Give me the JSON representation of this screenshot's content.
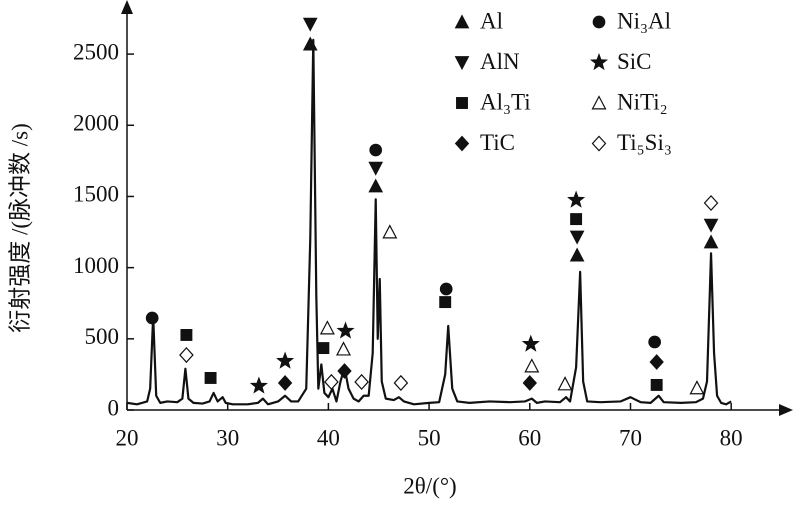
{
  "chart_data": {
    "type": "line",
    "xlabel": "2θ/(°)",
    "ylabel": "衍射强度 /(脉冲数 /s)",
    "color": "#111111",
    "xlim": [
      20,
      86
    ],
    "ylim": [
      0,
      2880
    ],
    "xticks": [
      20,
      30,
      40,
      50,
      60,
      70,
      80
    ],
    "yticks": [
      0,
      500,
      1000,
      1500,
      2000,
      2500
    ],
    "x": [
      20,
      21,
      22,
      22.3,
      22.6,
      22.9,
      23.3,
      24,
      25,
      25.5,
      25.8,
      26.1,
      26.6,
      27.5,
      28.2,
      28.6,
      29,
      29.5,
      29.8,
      30.5,
      32,
      33,
      33.5,
      34,
      35,
      35.7,
      36.3,
      37,
      37.8,
      38.2,
      38.5,
      38.8,
      39,
      39.3,
      39.6,
      40,
      40.4,
      40.8,
      41.2,
      41.6,
      42,
      42.5,
      43,
      43.5,
      44,
      44.4,
      44.7,
      44.9,
      45.1,
      45.3,
      45.7,
      46.5,
      47,
      47.5,
      48.5,
      50,
      51,
      51.6,
      51.9,
      52.3,
      52.8,
      54,
      56,
      58,
      59.5,
      60.2,
      60.7,
      61.5,
      63,
      63.6,
      64,
      64.6,
      65,
      65.3,
      65.7,
      67,
      69,
      70,
      71,
      72,
      72.8,
      73.3,
      75,
      76.5,
      77.2,
      77.6,
      78,
      78.3,
      78.6,
      79,
      79.5,
      80
    ],
    "values": [
      50,
      40,
      60,
      150,
      660,
      100,
      50,
      60,
      55,
      80,
      290,
      80,
      50,
      45,
      60,
      120,
      60,
      90,
      50,
      40,
      40,
      50,
      80,
      40,
      60,
      100,
      60,
      60,
      150,
      1200,
      2600,
      800,
      150,
      320,
      120,
      90,
      150,
      60,
      200,
      300,
      150,
      80,
      60,
      100,
      100,
      400,
      1480,
      500,
      920,
      200,
      80,
      70,
      90,
      60,
      40,
      50,
      55,
      250,
      590,
      150,
      60,
      50,
      60,
      55,
      60,
      80,
      50,
      60,
      55,
      90,
      60,
      300,
      970,
      200,
      60,
      55,
      60,
      90,
      55,
      50,
      100,
      55,
      50,
      55,
      80,
      200,
      1100,
      400,
      100,
      50,
      40,
      60
    ],
    "phases": [
      {
        "name": "Al",
        "symbol": "triangle-up",
        "points": [
          [
            38.2,
            2570
          ],
          [
            44.7,
            1573
          ],
          [
            64.7,
            1088
          ],
          [
            78,
            1180
          ]
        ]
      },
      {
        "name": "AlN",
        "symbol": "triangle-down",
        "points": [
          [
            38.2,
            2711
          ],
          [
            44.7,
            1699
          ],
          [
            64.7,
            1215
          ],
          [
            78,
            1299
          ]
        ]
      },
      {
        "name": "Al₃Ti",
        "symbol": "square",
        "points": [
          [
            25.9,
            527
          ],
          [
            28.3,
            225
          ],
          [
            39.5,
            435
          ],
          [
            51.6,
            758
          ],
          [
            64.6,
            1341
          ],
          [
            72.6,
            176
          ]
        ]
      },
      {
        "name": "TiC",
        "symbol": "diamond",
        "points": [
          [
            35.7,
            190
          ],
          [
            41.6,
            274
          ],
          [
            60,
            190
          ],
          [
            72.6,
            337
          ]
        ]
      },
      {
        "name": "Ni₃Al",
        "symbol": "circle",
        "points": [
          [
            22.5,
            646
          ],
          [
            51.7,
            850
          ],
          [
            72.4,
            478
          ],
          [
            44.7,
            1826
          ]
        ]
      },
      {
        "name": "SiC",
        "symbol": "star",
        "points": [
          [
            33.1,
            169
          ],
          [
            35.7,
            344
          ],
          [
            41.7,
            555
          ],
          [
            60.1,
            463
          ],
          [
            64.6,
            1475
          ]
        ]
      },
      {
        "name": "NiTi₂",
        "symbol": "triangle-up-open",
        "points": [
          [
            39.9,
            576
          ],
          [
            41.5,
            428
          ],
          [
            46.1,
            1250
          ],
          [
            60.2,
            309
          ],
          [
            63.5,
            183
          ],
          [
            76.6,
            155
          ]
        ]
      },
      {
        "name": "Ti₅Si₃",
        "symbol": "diamond-open",
        "points": [
          [
            25.9,
            386
          ],
          [
            40.3,
            197
          ],
          [
            43.3,
            197
          ],
          [
            47.2,
            190
          ],
          [
            78,
            1454
          ]
        ]
      }
    ]
  }
}
